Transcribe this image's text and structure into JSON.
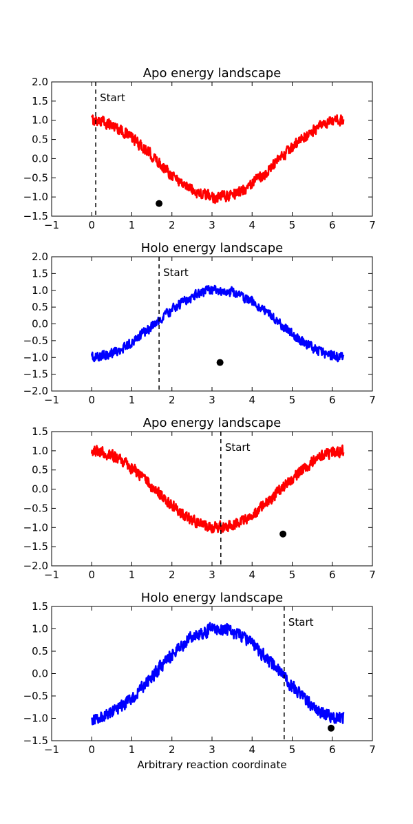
{
  "chart_data": [
    {
      "type": "line",
      "title": "Apo energy landscape",
      "xlabel": "",
      "ylabel": "",
      "xlim": [
        -1,
        7
      ],
      "ylim": [
        -1.5,
        2.0
      ],
      "xticks": [
        "−1",
        "0",
        "1",
        "2",
        "3",
        "4",
        "5",
        "6",
        "7"
      ],
      "yticks": [
        "−1.5",
        "−1.0",
        "−0.5",
        "0.0",
        "0.5",
        "1.0",
        "1.5",
        "2.0"
      ],
      "color": "#ff0000",
      "curve": {
        "x_start": 0.0,
        "x_end": 6.28,
        "phase": 1.5708,
        "noise": 0.16
      },
      "start_line_x": 0.1,
      "start_label": "Start",
      "marker": {
        "x": 1.68,
        "y": -1.17
      },
      "grid": false,
      "legend": "none"
    },
    {
      "type": "line",
      "title": "Holo energy landscape",
      "xlabel": "",
      "ylabel": "",
      "xlim": [
        -1,
        7
      ],
      "ylim": [
        -2.0,
        2.0
      ],
      "xticks": [
        "−1",
        "0",
        "1",
        "2",
        "3",
        "4",
        "5",
        "6",
        "7"
      ],
      "yticks": [
        "−2.0",
        "−1.5",
        "−1.0",
        "−0.5",
        "0.0",
        "0.5",
        "1.0",
        "1.5",
        "2.0"
      ],
      "color": "#0000ff",
      "curve": {
        "x_start": 0.0,
        "x_end": 6.28,
        "phase": 4.7124,
        "noise": 0.16
      },
      "start_line_x": 1.68,
      "start_label": "Start",
      "marker": {
        "x": 3.2,
        "y": -1.15
      },
      "grid": false,
      "legend": "none"
    },
    {
      "type": "line",
      "title": "Apo energy landscape",
      "xlabel": "",
      "ylabel": "",
      "xlim": [
        -1,
        7
      ],
      "ylim": [
        -2.0,
        1.5
      ],
      "xticks": [
        "−1",
        "0",
        "1",
        "2",
        "3",
        "4",
        "5",
        "6",
        "7"
      ],
      "yticks": [
        "−2.0",
        "−1.5",
        "−1.0",
        "−0.5",
        "0.0",
        "0.5",
        "1.0",
        "1.5"
      ],
      "color": "#ff0000",
      "curve": {
        "x_start": 0.0,
        "x_end": 6.28,
        "phase": 1.5708,
        "noise": 0.16
      },
      "start_line_x": 3.22,
      "start_label": "Start",
      "marker": {
        "x": 4.77,
        "y": -1.17
      },
      "grid": false,
      "legend": "none"
    },
    {
      "type": "line",
      "title": "Holo energy landscape",
      "xlabel": "Arbitrary reaction coordinate",
      "ylabel": "",
      "xlim": [
        -1,
        7
      ],
      "ylim": [
        -1.5,
        1.5
      ],
      "xticks": [
        "−1",
        "0",
        "1",
        "2",
        "3",
        "4",
        "5",
        "6",
        "7"
      ],
      "yticks": [
        "−1.5",
        "−1.0",
        "−0.5",
        "0.0",
        "0.5",
        "1.0",
        "1.5"
      ],
      "color": "#0000ff",
      "curve": {
        "x_start": 0.0,
        "x_end": 6.28,
        "phase": 4.7124,
        "noise": 0.16
      },
      "start_line_x": 4.8,
      "start_label": "Start",
      "marker": {
        "x": 5.97,
        "y": -1.22
      },
      "grid": false,
      "legend": "none"
    }
  ]
}
